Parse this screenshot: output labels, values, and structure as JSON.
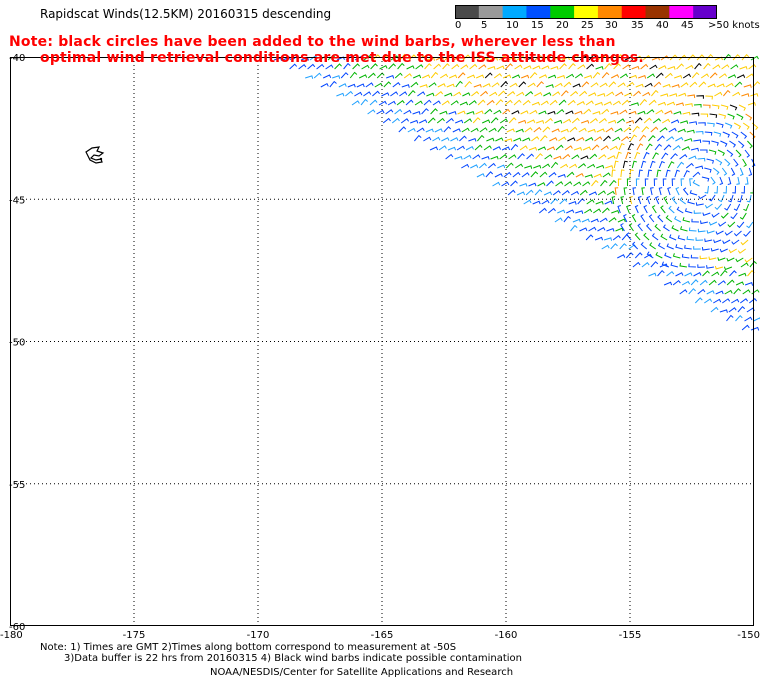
{
  "title": "Rapidscat Winds(12.5KM) 20160315 descending",
  "note": {
    "line1": "Note: black circles have been added to the wind barbs, wherever less than",
    "line2": "optimal wind retrieval conditions are met due to the ISS attitude changes."
  },
  "colorbar": {
    "labels": [
      "0",
      "5",
      "10",
      "15",
      "20",
      "25",
      "30",
      "35",
      "40",
      "45",
      ">50 knots"
    ],
    "colors": [
      "#4a4a4a",
      "#9a9a9a",
      "#00aaff",
      "#0050ff",
      "#00cc00",
      "#ffff00",
      "#ff8800",
      "#ff0000",
      "#993300",
      "#ff00ff",
      "#6600cc"
    ]
  },
  "axes": {
    "lon_labels": [
      "-180",
      "-175",
      "-170",
      "-165",
      "-160",
      "-155",
      "-150"
    ],
    "lat_labels": [
      "-40",
      "-45",
      "-50",
      "-55",
      "-60"
    ],
    "lon_range": [
      -180,
      -150
    ],
    "lat_range": [
      -40,
      -60
    ],
    "grid": "dotted"
  },
  "footer": {
    "line1": "Note: 1) Times are GMT 2)Times along bottom correspond to measurement at -50S",
    "line2": "3)Data buffer is 22 hrs from 20160315 4) Black wind barbs indicate possible contamination",
    "line3": "NOAA/NESDIS/Center for Satellite Applications and Research"
  }
}
